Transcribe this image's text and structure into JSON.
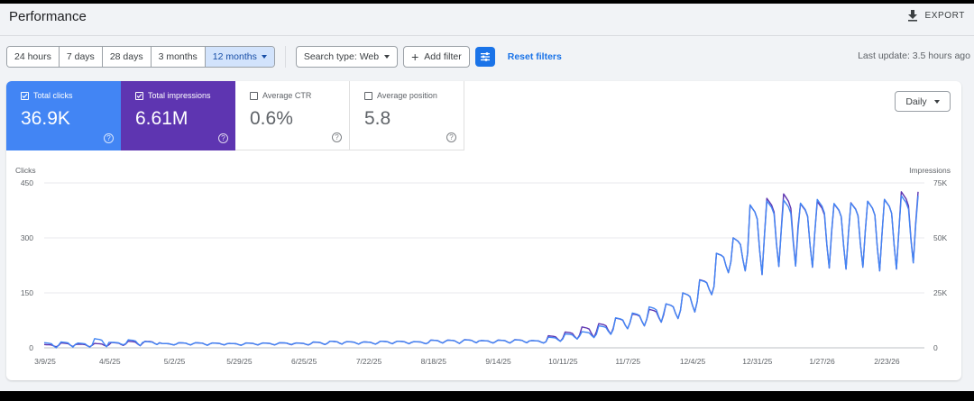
{
  "header": {
    "title": "Performance",
    "export_label": "EXPORT"
  },
  "toolbar": {
    "date_ranges": [
      "24 hours",
      "7 days",
      "28 days",
      "3 months",
      "12 months"
    ],
    "active_range": "12 months",
    "search_type": "Search type: Web",
    "add_filter": "Add filter",
    "reset_filters": "Reset filters",
    "last_update": "Last update: 3.5 hours ago"
  },
  "metrics": {
    "clicks": {
      "label": "Total clicks",
      "value": "36.9K",
      "checked": true,
      "color": "#4285f4"
    },
    "impressions": {
      "label": "Total impressions",
      "value": "6.61M",
      "checked": true,
      "color": "#5e35b1"
    },
    "ctr": {
      "label": "Average CTR",
      "value": "0.6%",
      "checked": false
    },
    "position": {
      "label": "Average position",
      "value": "5.8",
      "checked": false
    }
  },
  "granularity": "Daily",
  "chart_data": {
    "type": "line",
    "left_axis": {
      "label": "Clicks",
      "ticks": [
        "450",
        "300",
        "150",
        "0"
      ],
      "ylim": [
        0,
        450
      ]
    },
    "right_axis": {
      "label": "Impressions",
      "ticks": [
        "75K",
        "50K",
        "25K",
        "0"
      ],
      "ylim": [
        0,
        75000
      ]
    },
    "x_ticks": [
      "3/9/25",
      "4/5/25",
      "5/2/25",
      "5/29/25",
      "6/25/25",
      "7/22/25",
      "8/18/25",
      "9/14/25",
      "10/11/25",
      "11/7/25",
      "12/4/25",
      "12/31/25",
      "1/27/26",
      "2/23/26"
    ],
    "weeks": 52,
    "series": [
      {
        "name": "Total clicks",
        "color": "#4285f4",
        "weekly_peak": [
          14,
          16,
          13,
          25,
          15,
          22,
          17,
          12,
          14,
          14,
          13,
          12,
          13,
          13,
          14,
          13,
          16,
          18,
          17,
          16,
          18,
          18,
          17,
          21,
          21,
          22,
          20,
          21,
          22,
          20,
          29,
          38,
          44,
          60,
          82,
          95,
          112,
          120,
          150,
          185,
          258,
          300,
          390,
          401,
          403,
          395,
          405,
          394,
          395,
          400,
          405,
          415
        ],
        "weekly_trough": [
          0,
          2,
          2,
          3,
          8,
          6,
          9,
          8,
          8,
          7,
          8,
          7,
          8,
          8,
          9,
          8,
          9,
          10,
          10,
          10,
          11,
          11,
          11,
          13,
          12,
          14,
          13,
          13,
          14,
          13,
          18,
          24,
          28,
          37,
          52,
          60,
          70,
          80,
          98,
          145,
          205,
          210,
          200,
          222,
          223,
          220,
          218,
          215,
          220,
          210,
          215,
          232
        ]
      },
      {
        "name": "Total impressions",
        "color": "#5e35b1",
        "weekly_peak": [
          1500,
          2200,
          1700,
          2000,
          2400,
          3000,
          3000,
          2000,
          2300,
          2300,
          2200,
          2000,
          2200,
          2200,
          2300,
          2200,
          2600,
          3000,
          2800,
          2700,
          3000,
          3000,
          2800,
          3500,
          3500,
          3700,
          3300,
          3500,
          3700,
          3300,
          5500,
          7200,
          9500,
          11000,
          13500,
          15500,
          17500,
          20000,
          25000,
          31000,
          43000,
          50000,
          65000,
          68000,
          70000,
          65500,
          66500,
          65500,
          66000,
          66700,
          67500,
          71000
        ],
        "weekly_trough": [
          500,
          600,
          500,
          700,
          1100,
          1000,
          1500,
          1300,
          1300,
          1200,
          1300,
          1200,
          1300,
          1300,
          1400,
          1300,
          1500,
          1700,
          1700,
          1700,
          1900,
          1900,
          1900,
          2200,
          2000,
          2300,
          2200,
          2200,
          2300,
          2200,
          3000,
          4000,
          4700,
          6200,
          8700,
          10000,
          11700,
          13300,
          16300,
          24200,
          34200,
          35000,
          33300,
          37000,
          37200,
          36700,
          36300,
          35800,
          36700,
          35000,
          35800,
          38700
        ]
      }
    ]
  }
}
